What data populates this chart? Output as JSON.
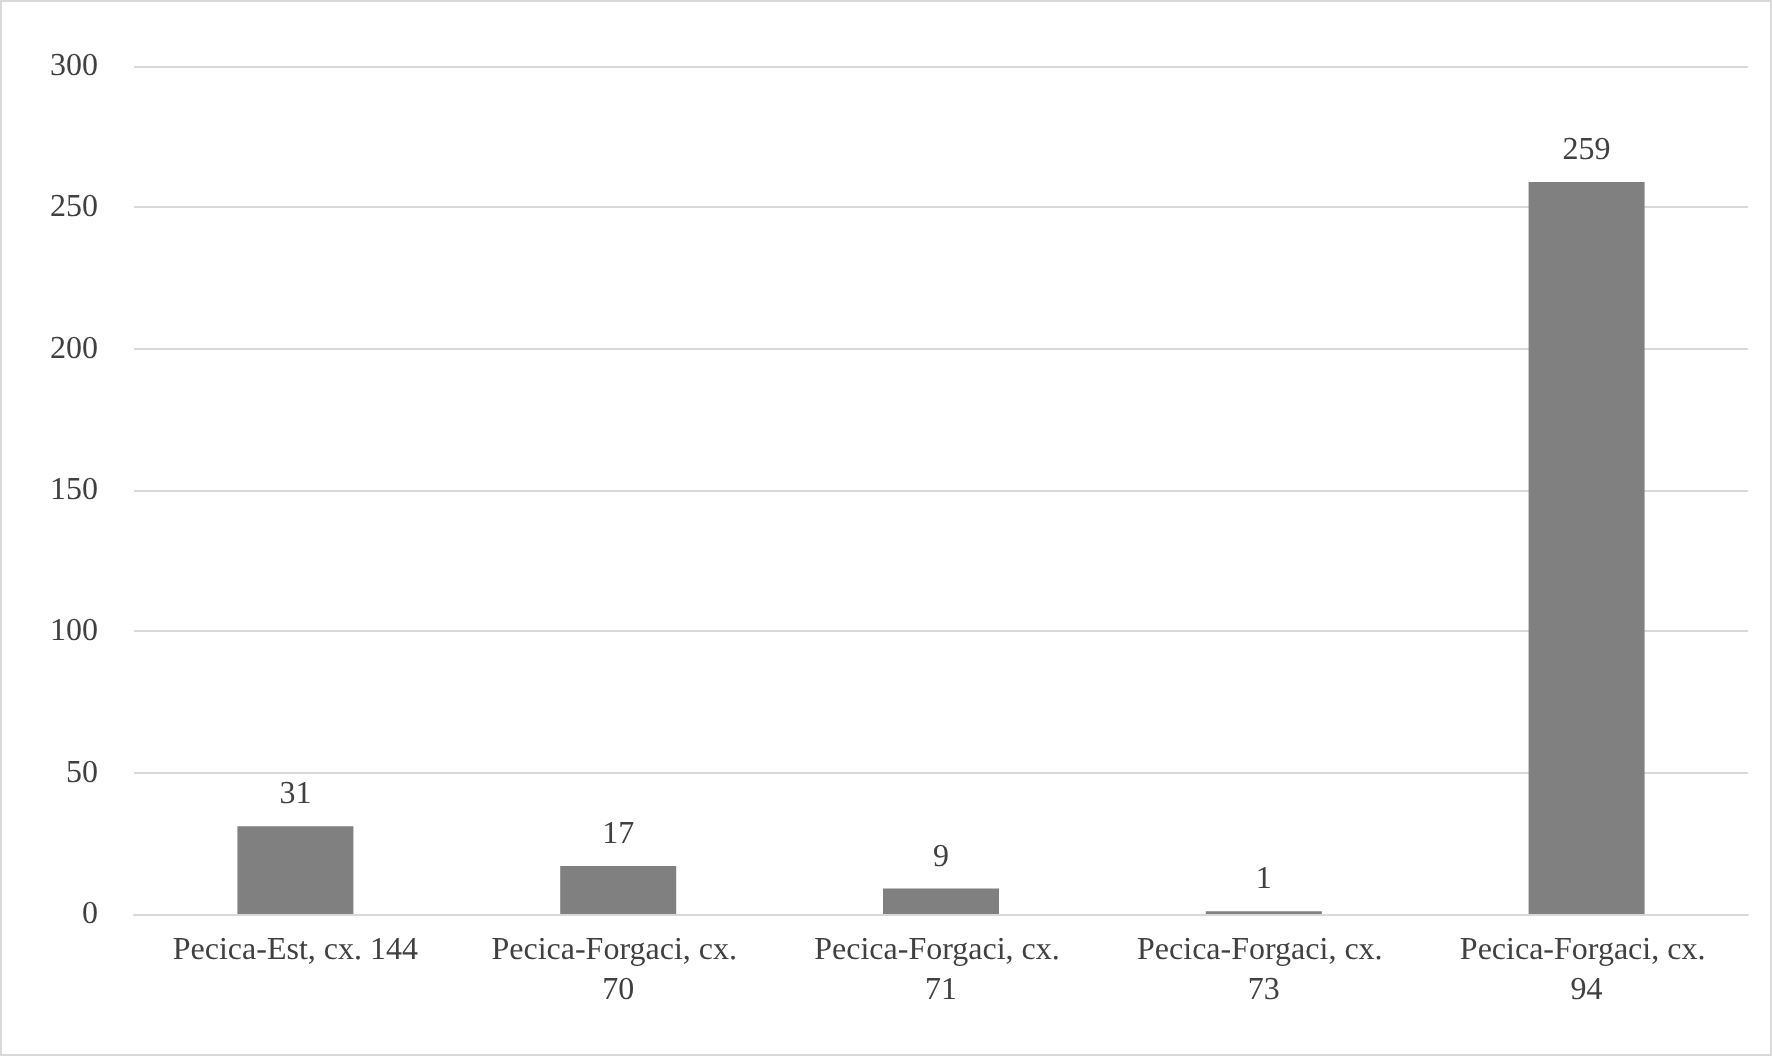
{
  "chart_data": {
    "type": "bar",
    "categories": [
      "Pecica-Est, cx. 144",
      "Pecica-Forgaci, cx. 70",
      "Pecica-Forgaci, cx. 71",
      "Pecica-Forgaci, cx. 73",
      "Pecica-Forgaci, cx. 94"
    ],
    "values": [
      31,
      17,
      9,
      1,
      259
    ],
    "color": "#808080",
    "ylim": [
      0,
      300
    ],
    "yticks": [
      0,
      50,
      100,
      150,
      200,
      250,
      300
    ],
    "grid": "y",
    "data_labels": true
  }
}
